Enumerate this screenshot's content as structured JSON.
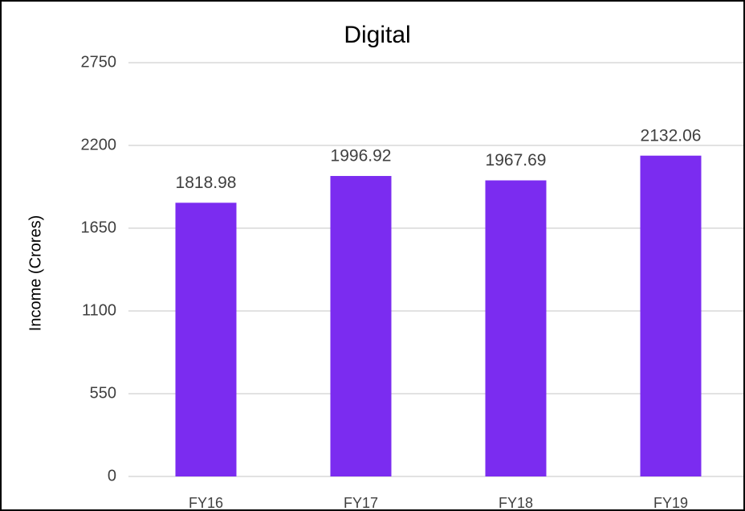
{
  "chart_data": {
    "type": "bar",
    "title": "Digital",
    "y_label": "Income (Crores)",
    "categories": [
      "FY16",
      "FY17",
      "FY18",
      "FY19"
    ],
    "values": [
      1818.98,
      1996.92,
      1967.69,
      2132.06
    ],
    "color": "#7b2cf0",
    "ylim": [
      0,
      2750
    ],
    "yticks": [
      0,
      550,
      1100,
      1650,
      2200,
      2750
    ],
    "grid": true,
    "data_labels": true
  }
}
